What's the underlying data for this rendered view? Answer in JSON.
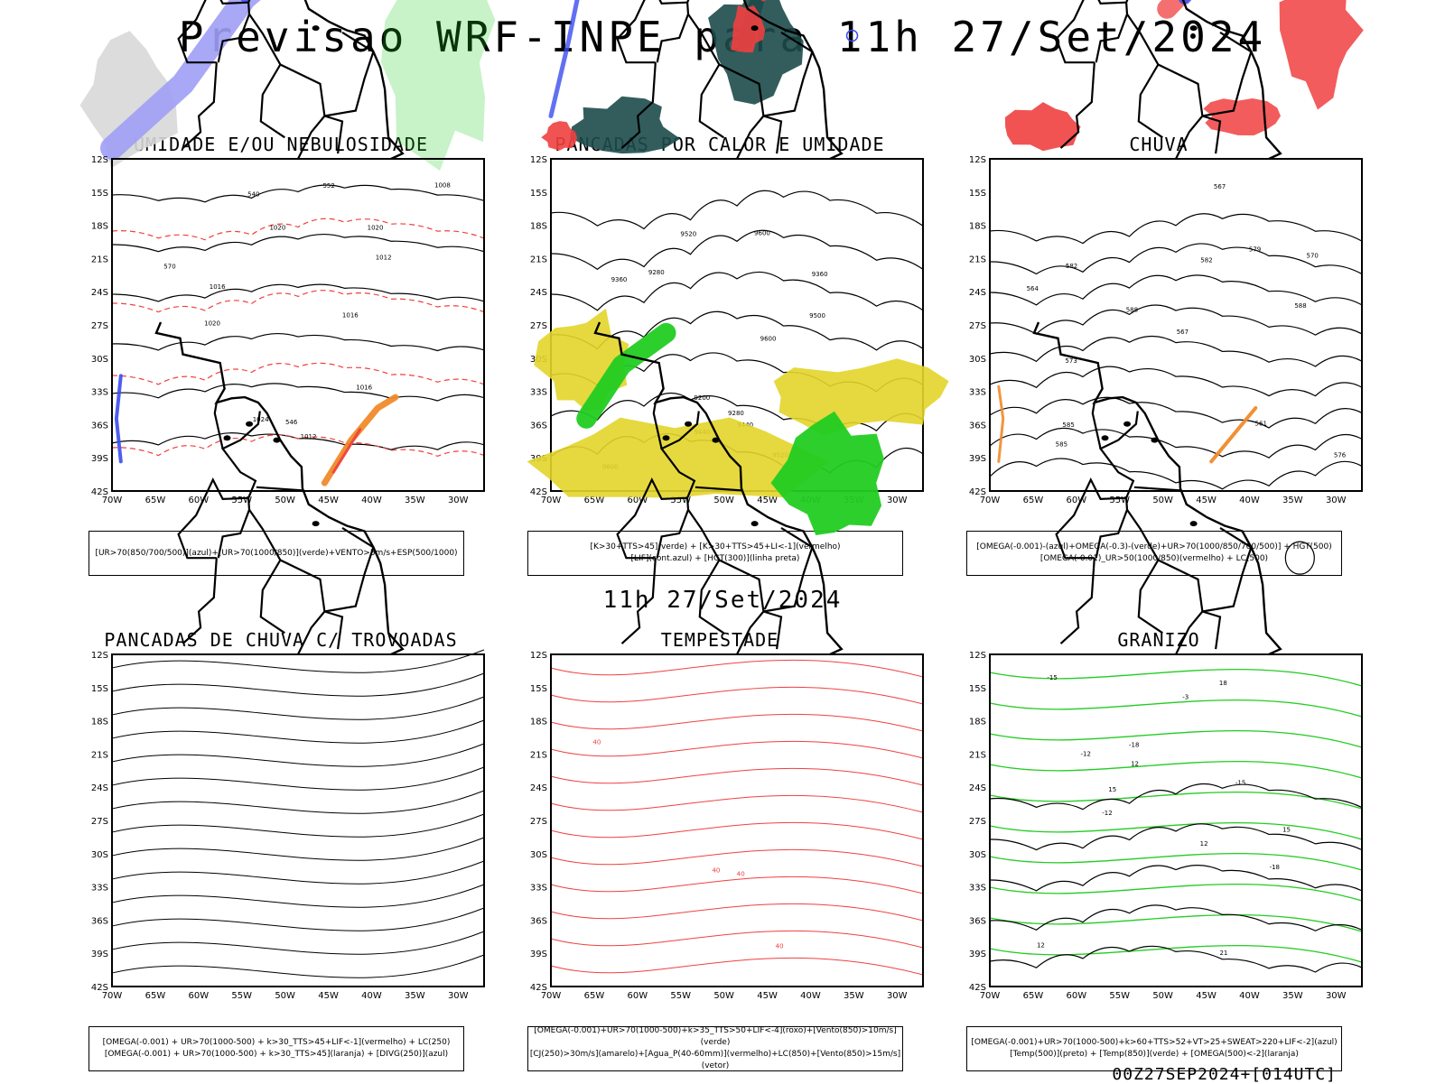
{
  "title": "Previsao WRF-INPE  para 11h 27/Set/2024",
  "mid_title": "11h 27/Set/2024",
  "footer": "00Z27SEP2024+[014UTC]",
  "lat_labels": [
    "12S",
    "15S",
    "18S",
    "21S",
    "24S",
    "27S",
    "30S",
    "33S",
    "36S",
    "39S",
    "42S"
  ],
  "lon_labels": [
    "70W",
    "65W",
    "60W",
    "55W",
    "50W",
    "45W",
    "40W",
    "35W",
    "30W"
  ],
  "colors": {
    "blue": "#3a4cf0",
    "lavender": "#9f9ff5",
    "green": "#22cc22",
    "red": "#f04040",
    "darkteal": "#1d4b4b",
    "orange": "#f08a2a",
    "yellow": "#e2d52a",
    "gray": "#d8d8d8"
  },
  "panels": [
    {
      "title": "UMIDADE E/OU NEBULOSIDADE",
      "caption": [
        "[UR>70(850/700/500)](azul)+[UR>70(1000/850)](verde)+VENTO>5m/s+ESP(500/1000)"
      ],
      "contour_labels": [
        "1016",
        "1012",
        "1020",
        "1016",
        "1012",
        "1020",
        "1016",
        "1008",
        "1020",
        "1024",
        "540",
        "546",
        "552",
        "570"
      ]
    },
    {
      "title": "PANCADAS POR CALOR E UMIDADE",
      "caption": [
        "[K>30+TTS>45](verde) + [K>30+TTS>45+LI<-1](vermelho)",
        "[LIF](cont.azul) + [HGT(300)](linha preta)"
      ],
      "contour_labels": [
        "9600",
        "9600",
        "9600",
        "9520",
        "9440",
        "9360",
        "9360",
        "9280",
        "9280",
        "9200",
        "9520",
        "9440",
        "9500"
      ]
    },
    {
      "title": "CHUVA",
      "caption": [
        "[OMEGA(-0.001)-(azul)+OMEGA(-0.3)-(verde)+UR>70(1000/850/700/500)] + HGT(500)",
        "[OMEGA(-0.01)_UR>50(1000/850)(vermelho) + LC(500)"
      ],
      "contour_labels": [
        "588",
        "585",
        "582",
        "579",
        "576",
        "573",
        "570",
        "567",
        "564",
        "561",
        "588",
        "585",
        "582",
        "567"
      ]
    },
    {
      "title": "PANCADAS DE CHUVA C/ TROVOADAS",
      "caption": [
        "[OMEGA(-0.001) + UR>70(1000-500) + k>30_TTS>45+LIF<-1](vermelho) + LC(250)",
        "[OMEGA(-0.001) + UR>70(1000-500) + k>30_TTS>45](laranja) + [DIVG(250)](azul)"
      ],
      "contour_labels": []
    },
    {
      "title": "TEMPESTADE",
      "caption": [
        "[OMEGA(-0.001)+UR>70(1000-500)+k>35_TTS>50+LIF<-4](roxo)+[Vento(850)>10m/s](verde)",
        "[CJ(250)>30m/s](amarelo)+[Agua_P(40-60mm)](vermelho)+LC(850)+[Vento(850)>15m/s](vetor)"
      ],
      "contour_labels": [
        "40",
        "40",
        "40",
        "40"
      ]
    },
    {
      "title": "GRANIZO",
      "caption": [
        "[OMEGA(-0.001)+UR>70(1000-500)+k>60+TTS>52+VT>25+SWEAT>220+LIF<-2](azul)",
        "[Temp(500)](preto) + [Temp(850)](verde) + [OMEGA(500)<-2](laranja)"
      ],
      "contour_labels": [
        "-3",
        "12",
        "12",
        "15",
        "18",
        "21",
        "-12",
        "-15",
        "-18",
        "-18",
        "12",
        "15",
        "-12",
        "-15"
      ]
    }
  ]
}
